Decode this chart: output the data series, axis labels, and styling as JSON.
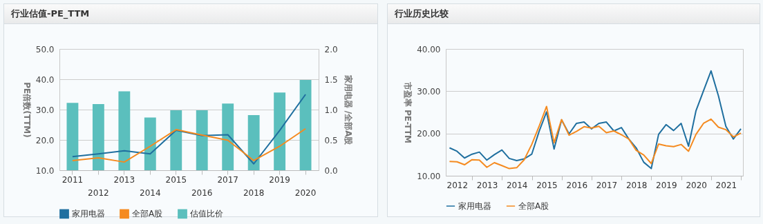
{
  "chart_data": [
    {
      "type": "line",
      "title": "行业估值-PE_TTM",
      "ylabel": "PE倍数(TTM)",
      "y2label": "家用电器 /全部A股",
      "categories": [
        "2011",
        "2012",
        "2013",
        "2014",
        "2015",
        "2016",
        "2017",
        "2018",
        "2019",
        "2020"
      ],
      "series": [
        {
          "name": "家用电器",
          "color": "#1f6f9f",
          "values": [
            14.5,
            15.4,
            16.4,
            15.4,
            23.2,
            21.4,
            21.7,
            12.1,
            23.1,
            35.0
          ]
        },
        {
          "name": "全部A股",
          "color": "#f58a1f",
          "values": [
            13.2,
            14.1,
            12.7,
            17.9,
            23.4,
            21.6,
            19.9,
            13.2,
            17.9,
            23.7
          ]
        },
        {
          "name": "估值比价",
          "type": "bar",
          "axis": "y2",
          "color": "#5bbfbd",
          "values": [
            1.11,
            1.09,
            1.3,
            0.87,
            0.99,
            0.99,
            1.1,
            0.91,
            1.28,
            1.49
          ]
        }
      ],
      "ylim": [
        10,
        50
      ],
      "yticks": [
        {
          "value": 10,
          "label": "10.0"
        },
        {
          "value": 20,
          "label": "20.0"
        },
        {
          "value": 30,
          "label": "30.0"
        },
        {
          "value": 40,
          "label": "40.0"
        },
        {
          "value": 50,
          "label": "50.0"
        }
      ],
      "y2lim": [
        0,
        2
      ],
      "y2ticks": [
        {
          "value": 0,
          "label": "0.0"
        },
        {
          "value": 0.5,
          "label": "0.5"
        },
        {
          "value": 1,
          "label": "1.0"
        },
        {
          "value": 1.5,
          "label": "1.5"
        },
        {
          "value": 2,
          "label": "2.0"
        }
      ],
      "grid": "y",
      "legend": "bottom"
    },
    {
      "type": "line",
      "title": "行业历史比较",
      "ylabel": "市盈率 PE-TTM",
      "x": [
        "2012-03-31",
        "2012-06-30",
        "2012-09-30",
        "2012-12-31",
        "2013-03-31",
        "2013-06-30",
        "2013-09-30",
        "2013-12-31",
        "2014-03-31",
        "2014-06-30",
        "2014-09-30",
        "2014-12-31",
        "2015-03-31",
        "2015-06-30",
        "2015-09-30",
        "2015-12-31",
        "2016-03-31",
        "2016-06-30",
        "2016-09-30",
        "2016-12-31",
        "2017-03-31",
        "2017-06-30",
        "2017-09-30",
        "2017-12-31",
        "2018-03-31",
        "2018-06-30",
        "2018-09-30",
        "2018-12-31",
        "2019-03-31",
        "2019-06-30",
        "2019-09-30",
        "2019-12-31",
        "2020-03-31",
        "2020-06-30",
        "2020-09-30",
        "2020-12-31",
        "2021-03-31",
        "2021-06-30",
        "2021-09-30",
        "2021-12-31"
      ],
      "series": [
        {
          "name": "家用电器",
          "color": "#1f6f9f",
          "values": [
            16.6,
            15.8,
            14.2,
            15.1,
            15.6,
            13.7,
            15.0,
            16.1,
            14.1,
            13.6,
            14.0,
            15.1,
            20.5,
            25.1,
            16.3,
            23.2,
            19.9,
            22.4,
            22.7,
            21.1,
            22.4,
            22.7,
            20.6,
            21.4,
            18.7,
            16.6,
            13.2,
            11.7,
            19.8,
            22.1,
            20.7,
            22.4,
            17.0,
            25.4,
            30.1,
            34.8,
            28.9,
            21.7,
            18.7,
            21.1
          ]
        },
        {
          "name": "全部A股",
          "color": "#f58a1f",
          "values": [
            13.4,
            13.3,
            12.6,
            13.8,
            13.7,
            12.0,
            13.1,
            12.4,
            11.7,
            11.9,
            13.8,
            17.4,
            21.7,
            26.4,
            17.8,
            23.3,
            19.6,
            20.5,
            21.6,
            21.3,
            21.7,
            20.2,
            20.6,
            19.7,
            18.7,
            16.0,
            14.9,
            12.9,
            17.5,
            17.1,
            16.9,
            17.4,
            15.8,
            19.8,
            22.4,
            23.4,
            21.5,
            20.9,
            19.2,
            20.1
          ]
        }
      ],
      "xlim": [
        "2012-02-14",
        "2022-01-25"
      ],
      "xticks": [
        {
          "value": "2012-07-01",
          "label": "2012"
        },
        {
          "value": "2013-01-01",
          "label": null
        },
        {
          "value": "2013-07-01",
          "label": "2013"
        },
        {
          "value": "2014-01-01",
          "label": null
        },
        {
          "value": "2014-07-01",
          "label": "2014"
        },
        {
          "value": "2015-01-01",
          "label": null
        },
        {
          "value": "2015-07-01",
          "label": "2015"
        },
        {
          "value": "2016-01-01",
          "label": null
        },
        {
          "value": "2016-07-01",
          "label": "2016"
        },
        {
          "value": "2017-01-01",
          "label": null
        },
        {
          "value": "2017-07-01",
          "label": "2017"
        },
        {
          "value": "2018-01-01",
          "label": null
        },
        {
          "value": "2018-07-01",
          "label": "2018"
        },
        {
          "value": "2019-01-01",
          "label": null
        },
        {
          "value": "2019-07-01",
          "label": "2019"
        },
        {
          "value": "2020-01-01",
          "label": null
        },
        {
          "value": "2020-07-01",
          "label": "2020"
        },
        {
          "value": "2021-01-01",
          "label": null
        },
        {
          "value": "2021-07-01",
          "label": "2021"
        },
        {
          "value": "2022-01-01",
          "label": null
        }
      ],
      "ylim": [
        10,
        40
      ],
      "yticks": [
        {
          "value": 10,
          "label": "10.00"
        },
        {
          "value": 20,
          "label": "20.00"
        },
        {
          "value": 30,
          "label": "30.00"
        },
        {
          "value": 40,
          "label": "40.00"
        }
      ],
      "grid": "y",
      "legend": "bottom"
    }
  ]
}
